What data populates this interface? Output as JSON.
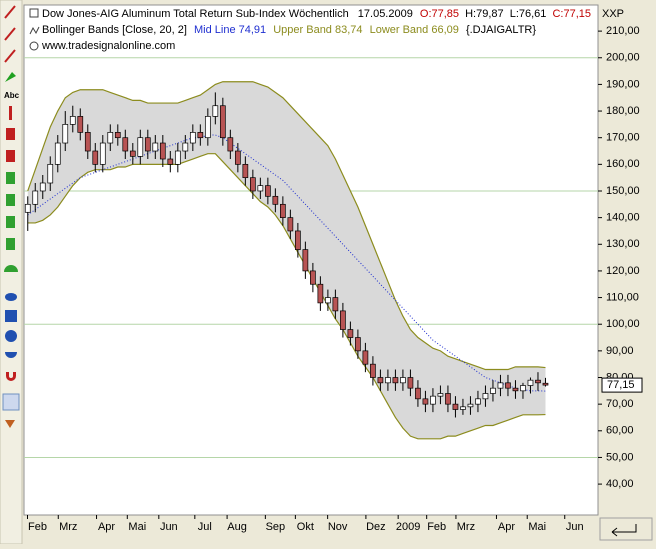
{
  "chart_data": {
    "type": "candlestick",
    "title": "Dow Jones-AIG Aluminum Total Return Sub-Index Wöchentlich",
    "date": "17.05.2009",
    "ohlc_open": "O:77,85",
    "ohlc_high": "H:79,87",
    "ohlc_low": "L:76,61",
    "ohlc_close": "C:77,15",
    "indicator": "Bollinger Bands [Close, 20, 2]",
    "mid_label": "Mid Line 74,91",
    "upper_label": "Upper Band 83,74",
    "lower_label": "Lower Band 66,09",
    "symbol": "{.DJAIGALTR}",
    "source": "www.tradesignalonline.com",
    "corner": "XXP",
    "last_price": {
      "value": 77.15,
      "label": "77,15"
    },
    "up_color": "#ffffff",
    "down_color": "#b85454",
    "band_color": "#8c8c1e",
    "band_fill": "#d9d9d9",
    "mid_color": "#1f2fd0",
    "grid_color": "#b5d6a8",
    "major_grid": [
      50,
      100,
      150,
      200
    ],
    "xlim": [
      -0.5,
      76
    ],
    "ylim": [
      28.4,
      219.8
    ],
    "yticks": [
      {
        "value": 40,
        "label": "40,00"
      },
      {
        "value": 50,
        "label": "50,00"
      },
      {
        "value": 60,
        "label": "60,00"
      },
      {
        "value": 70,
        "label": "70,00"
      },
      {
        "value": 80,
        "label": "80,00"
      },
      {
        "value": 90,
        "label": "90,00"
      },
      {
        "value": 100,
        "label": "100,00"
      },
      {
        "value": 110,
        "label": "110,00"
      },
      {
        "value": 120,
        "label": "120,00"
      },
      {
        "value": 130,
        "label": "130,00"
      },
      {
        "value": 140,
        "label": "140,00"
      },
      {
        "value": 150,
        "label": "150,00"
      },
      {
        "value": 160,
        "label": "160,00"
      },
      {
        "value": 170,
        "label": "170,00"
      },
      {
        "value": 180,
        "label": "180,00"
      },
      {
        "value": 190,
        "label": "190,00"
      },
      {
        "value": 200,
        "label": "200,00"
      },
      {
        "value": 210,
        "label": "210,00"
      }
    ],
    "xticks": [
      {
        "value": 1.3,
        "label": "Feb"
      },
      {
        "value": 5.4,
        "label": "Mrz"
      },
      {
        "value": 10.5,
        "label": "Apr"
      },
      {
        "value": 14.6,
        "label": "Mai"
      },
      {
        "value": 18.8,
        "label": "Jun"
      },
      {
        "value": 23.6,
        "label": "Jul"
      },
      {
        "value": 27.9,
        "label": "Aug"
      },
      {
        "value": 33,
        "label": "Sep"
      },
      {
        "value": 37,
        "label": "Okt"
      },
      {
        "value": 41.3,
        "label": "Nov"
      },
      {
        "value": 46.4,
        "label": "Dez"
      },
      {
        "value": 50.7,
        "label": "2009"
      },
      {
        "value": 54.5,
        "label": "Feb"
      },
      {
        "value": 58.4,
        "label": "Mrz"
      },
      {
        "value": 63.8,
        "label": "Apr"
      },
      {
        "value": 67.9,
        "label": "Mai"
      },
      {
        "value": 72.9,
        "label": "Jun"
      }
    ],
    "open": [
      142,
      145,
      150,
      153,
      160,
      168,
      175,
      178,
      172,
      165,
      160,
      168,
      172,
      170,
      165,
      163,
      170,
      165,
      168,
      162,
      160,
      165,
      168,
      172,
      170,
      178,
      182,
      170,
      165,
      160,
      155,
      150,
      152,
      148,
      145,
      140,
      135,
      128,
      120,
      115,
      108,
      110,
      105,
      98,
      95,
      90,
      85,
      80,
      78,
      80,
      78,
      80,
      76,
      72,
      70,
      73,
      74,
      70,
      68,
      69,
      70,
      72,
      74,
      76,
      78,
      76,
      75,
      77,
      79,
      77.85
    ],
    "high": [
      148,
      153,
      156,
      163,
      171,
      180,
      182,
      181,
      175,
      168,
      171,
      175,
      175,
      173,
      168,
      173,
      173,
      171,
      171,
      165,
      168,
      171,
      175,
      175,
      181,
      187,
      185,
      173,
      168,
      163,
      158,
      155,
      155,
      151,
      148,
      143,
      138,
      131,
      123,
      118,
      113,
      113,
      108,
      101,
      98,
      93,
      88,
      83,
      83,
      83,
      83,
      83,
      79,
      75,
      76,
      77,
      77,
      73,
      72,
      73,
      75,
      77,
      79,
      81,
      81,
      79,
      78,
      80,
      82,
      79.87
    ],
    "low": [
      135,
      142,
      147,
      150,
      157,
      165,
      172,
      169,
      162,
      157,
      157,
      165,
      167,
      162,
      160,
      160,
      162,
      162,
      159,
      157,
      157,
      162,
      165,
      167,
      167,
      175,
      167,
      162,
      157,
      152,
      147,
      147,
      145,
      142,
      137,
      132,
      125,
      117,
      112,
      105,
      105,
      102,
      95,
      92,
      87,
      82,
      77,
      75,
      75,
      75,
      75,
      73,
      69,
      67,
      67,
      70,
      67,
      65,
      66,
      66,
      67,
      69,
      71,
      73,
      73,
      72,
      72,
      74,
      75,
      76.61
    ],
    "close": [
      145,
      150,
      153,
      160,
      168,
      175,
      178,
      172,
      165,
      160,
      168,
      172,
      170,
      165,
      163,
      170,
      165,
      168,
      162,
      160,
      165,
      168,
      172,
      170,
      178,
      182,
      170,
      165,
      160,
      155,
      150,
      152,
      148,
      145,
      140,
      135,
      128,
      120,
      115,
      108,
      110,
      105,
      98,
      95,
      90,
      85,
      80,
      78,
      80,
      78,
      80,
      76,
      72,
      70,
      73,
      74,
      70,
      68,
      69,
      70,
      72,
      74,
      76,
      78,
      76,
      75,
      77,
      79,
      78,
      77.15
    ],
    "upper": [
      150,
      158,
      166,
      174,
      180,
      185,
      187,
      188,
      188,
      188,
      188,
      187,
      186,
      185,
      184,
      184,
      183,
      183,
      183,
      183,
      183,
      184,
      185,
      186,
      188,
      190,
      191,
      191,
      191,
      191,
      191,
      190,
      189,
      187,
      185,
      182,
      179,
      176,
      173,
      170,
      167,
      162,
      156,
      150,
      144,
      137,
      130,
      123,
      116,
      109,
      103,
      98,
      95,
      93,
      91,
      90,
      88,
      87,
      86,
      85,
      84,
      83,
      83,
      83,
      83,
      84,
      84,
      84,
      84,
      83.74
    ],
    "lower": [
      138,
      138,
      139,
      141,
      144,
      148,
      152,
      155,
      157,
      158,
      158,
      158,
      159,
      159,
      160,
      160,
      160,
      160,
      160,
      160,
      160,
      161,
      162,
      163,
      164,
      164,
      161,
      158,
      155,
      152,
      149,
      146,
      144,
      141,
      137,
      132,
      127,
      122,
      117,
      112,
      107,
      102,
      98,
      93,
      88,
      84,
      80,
      75,
      70,
      65,
      61,
      58,
      57,
      57,
      57,
      57,
      58,
      58,
      59,
      60,
      61,
      62,
      62,
      63,
      64,
      65,
      66,
      66,
      66,
      66.09
    ],
    "mid": [
      141,
      143,
      145,
      147,
      149,
      151,
      153,
      155,
      156,
      157,
      158,
      159,
      160,
      161,
      162,
      163,
      164,
      165,
      166,
      167,
      168,
      169,
      170,
      170,
      171,
      171,
      170,
      168,
      166,
      164,
      162,
      160,
      158,
      156,
      154,
      151,
      148,
      145,
      142,
      139,
      136,
      133,
      130,
      127,
      124,
      121,
      118,
      115,
      112,
      109,
      106,
      103,
      100,
      97,
      94,
      92,
      90,
      88,
      86,
      84,
      82,
      80,
      79,
      78,
      77,
      76,
      75.5,
      75,
      75,
      74.91
    ]
  }
}
